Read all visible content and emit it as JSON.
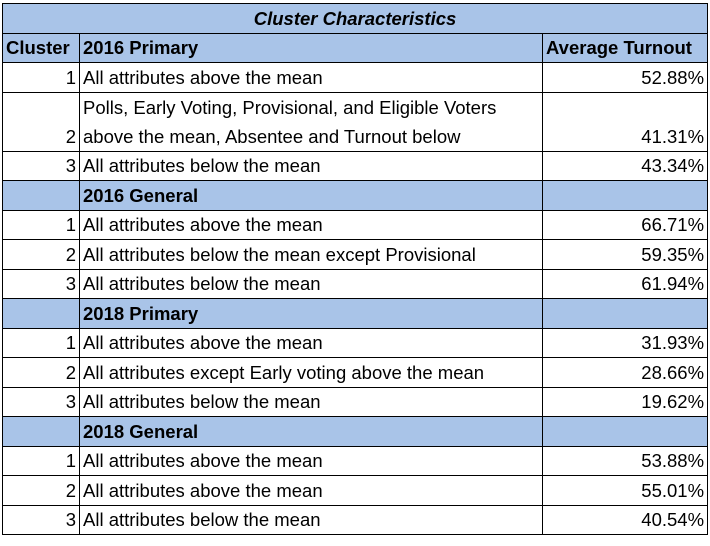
{
  "title": "Cluster Characteristics",
  "headers": {
    "cluster": "Cluster",
    "section": "2016 Primary",
    "turnout": "Average Turnout"
  },
  "sections": [
    {
      "label": "2016 Primary",
      "rows": [
        {
          "cluster": "1",
          "description": "All attributes above the mean",
          "turnout": "52.88%"
        },
        {
          "cluster": "2",
          "description_line1": "Polls, Early Voting, Provisional, and Eligible Voters",
          "description_line2": "above the mean, Absentee and Turnout below",
          "turnout": "41.31%"
        },
        {
          "cluster": "3",
          "description": "All attributes below the mean",
          "turnout": "43.34%"
        }
      ]
    },
    {
      "label": "2016 General",
      "rows": [
        {
          "cluster": "1",
          "description": "All attributes above the mean",
          "turnout": "66.71%"
        },
        {
          "cluster": "2",
          "description": "All attributes below the mean except Provisional",
          "turnout": "59.35%"
        },
        {
          "cluster": "3",
          "description": "All attributes below the mean",
          "turnout": "61.94%"
        }
      ]
    },
    {
      "label": "2018 Primary",
      "rows": [
        {
          "cluster": "1",
          "description": "All attributes above the mean",
          "turnout": "31.93%"
        },
        {
          "cluster": "2",
          "description": "All attributes except Early voting above the mean",
          "turnout": "28.66%"
        },
        {
          "cluster": "3",
          "description": "All attributes below the mean",
          "turnout": "19.62%"
        }
      ]
    },
    {
      "label": "2018 General",
      "rows": [
        {
          "cluster": "1",
          "description": "All attributes above the mean",
          "turnout": "53.88%"
        },
        {
          "cluster": "2",
          "description": "All attributes above the mean",
          "turnout": "55.01%"
        },
        {
          "cluster": "3",
          "description": "All attributes below the mean",
          "turnout": "40.54%"
        }
      ]
    }
  ],
  "colors": {
    "header_fill": "#a9c4e8",
    "border": "#000000"
  }
}
